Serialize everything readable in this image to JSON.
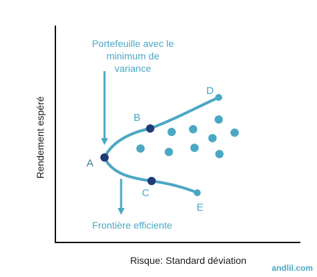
{
  "colors": {
    "curve": "#4aa8c4",
    "portfolio_dot": "#4aa8c4",
    "key_point": "#1f3c78",
    "axis": "#111111",
    "label": "#4aa8c4"
  },
  "axes": {
    "x_label": "Risque: Standard déviation",
    "y_label": "Rendement espéré"
  },
  "annotations": {
    "min_variance_line1": "Portefeuille avec le",
    "min_variance_line2": "minimum de",
    "min_variance_line3": "variance",
    "frontier": "Frontière efficiente"
  },
  "points": {
    "a": "A",
    "b": "B",
    "c": "C",
    "d": "D",
    "e": "E"
  },
  "brand": "andlil.com"
}
